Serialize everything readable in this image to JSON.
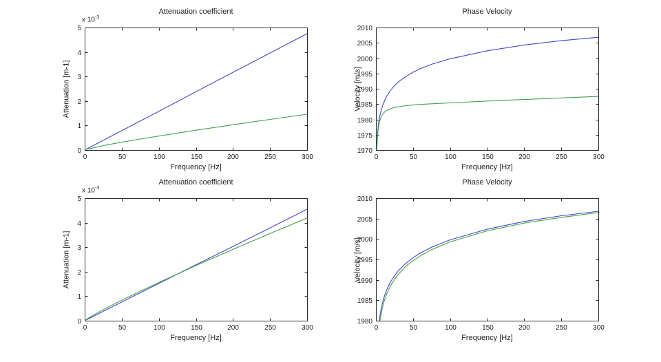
{
  "figure": {
    "background": "#ffffff",
    "axis_color": "#2a2a2a",
    "text_color": "#222222",
    "line_blue": "#4444cc",
    "line_green": "#3fa04e"
  },
  "chart_data": [
    {
      "type": "line",
      "title": "Attenuation coefficient",
      "xlabel": "Frequency [Hz]",
      "ylabel": "Attenuation [m-1]",
      "scale_label": "x 10",
      "scale_exp": "-3",
      "xlim": [
        0,
        300
      ],
      "ylim": [
        0,
        5
      ],
      "xticks": [
        0,
        50,
        100,
        150,
        200,
        250,
        300
      ],
      "yticks": [
        0,
        1,
        2,
        3,
        4,
        5
      ],
      "grid": false,
      "legend": "none",
      "series": [
        {
          "name": "blue-linear",
          "color": "#4444cc",
          "x": [
            0,
            50,
            100,
            150,
            200,
            250,
            300
          ],
          "y": [
            0,
            0.79,
            1.58,
            2.38,
            3.17,
            3.96,
            4.75
          ]
        },
        {
          "name": "green-powerlaw",
          "color": "#3fa04e",
          "x": [
            0,
            5,
            10,
            25,
            50,
            75,
            100,
            150,
            200,
            250,
            300
          ],
          "y": [
            0,
            0.05,
            0.08,
            0.18,
            0.32,
            0.45,
            0.57,
            0.81,
            1.03,
            1.25,
            1.46
          ]
        }
      ]
    },
    {
      "type": "line",
      "title": "Phase Velocity",
      "xlabel": "Frequency [Hz]",
      "ylabel": "Velocity [m/s]",
      "scale_label": "",
      "scale_exp": "",
      "xlim": [
        0,
        300
      ],
      "ylim": [
        1970,
        2010
      ],
      "xticks": [
        0,
        50,
        100,
        150,
        200,
        250,
        300
      ],
      "yticks": [
        1970,
        1975,
        1980,
        1985,
        1990,
        1995,
        2000,
        2005,
        2010
      ],
      "grid": false,
      "legend": "none",
      "series": [
        {
          "name": "blue-dispersive",
          "color": "#4444cc",
          "x": [
            1,
            2,
            3,
            4,
            5,
            6,
            8,
            10,
            12,
            15,
            20,
            25,
            30,
            40,
            50,
            60,
            75,
            100,
            150,
            200,
            250,
            300
          ],
          "y": [
            1970.5,
            1974.9,
            1977.5,
            1979.3,
            1980.8,
            1981.9,
            1983.7,
            1985.2,
            1986.3,
            1987.8,
            1989.6,
            1991.0,
            1992.2,
            1994.0,
            1995.4,
            1996.6,
            1998.0,
            1999.8,
            2002.4,
            2004.3,
            2005.7,
            2006.8
          ]
        },
        {
          "name": "green-dispersive",
          "color": "#3fa04e",
          "x": [
            1,
            2,
            3,
            4,
            5,
            6,
            8,
            10,
            12,
            15,
            20,
            25,
            30,
            40,
            50,
            60,
            75,
            100,
            150,
            200,
            250,
            300
          ],
          "y": [
            1970.0,
            1974.0,
            1976.5,
            1978.2,
            1979.4,
            1980.2,
            1981.3,
            1982.0,
            1982.5,
            1983.0,
            1983.5,
            1983.9,
            1984.1,
            1984.5,
            1984.7,
            1984.9,
            1985.1,
            1985.4,
            1986.0,
            1986.5,
            1987.0,
            1987.5
          ]
        }
      ]
    },
    {
      "type": "line",
      "title": "Attenuation coefficient",
      "xlabel": "Frequency [Hz]",
      "ylabel": "Attenuation [m-1]",
      "scale_label": "x 10",
      "scale_exp": "-3",
      "xlim": [
        0,
        300
      ],
      "ylim": [
        0,
        5
      ],
      "xticks": [
        0,
        50,
        100,
        150,
        200,
        250,
        300
      ],
      "yticks": [
        0,
        1,
        2,
        3,
        4,
        5
      ],
      "grid": false,
      "legend": "none",
      "series": [
        {
          "name": "blue-linear",
          "color": "#4444cc",
          "x": [
            0,
            50,
            100,
            150,
            200,
            250,
            300
          ],
          "y": [
            0,
            0.76,
            1.52,
            2.28,
            3.03,
            3.79,
            4.55
          ]
        },
        {
          "name": "green-powerlaw",
          "color": "#3fa04e",
          "x": [
            0,
            5,
            10,
            25,
            50,
            75,
            100,
            150,
            200,
            250,
            300
          ],
          "y": [
            0,
            0.11,
            0.2,
            0.45,
            0.84,
            1.2,
            1.56,
            2.25,
            2.91,
            3.56,
            4.19
          ]
        }
      ]
    },
    {
      "type": "line",
      "title": "Phase Velocity",
      "xlabel": "Frequency [Hz]",
      "ylabel": "Velocity [m/s]",
      "scale_label": "",
      "scale_exp": "",
      "xlim": [
        0,
        300
      ],
      "ylim": [
        1980,
        2010
      ],
      "xticks": [
        0,
        50,
        100,
        150,
        200,
        250,
        300
      ],
      "yticks": [
        1980,
        1985,
        1990,
        1995,
        2000,
        2005,
        2010
      ],
      "grid": false,
      "legend": "none",
      "series": [
        {
          "name": "blue-dispersive",
          "color": "#4444cc",
          "x": [
            3,
            4,
            5,
            6,
            8,
            10,
            12,
            15,
            20,
            25,
            30,
            40,
            50,
            60,
            75,
            100,
            150,
            200,
            250,
            300
          ],
          "y": [
            1977.5,
            1979.3,
            1980.8,
            1981.9,
            1983.7,
            1985.2,
            1986.3,
            1987.8,
            1989.6,
            1991.0,
            1992.2,
            1994.0,
            1995.4,
            1996.6,
            1998.0,
            1999.8,
            2002.4,
            2004.3,
            2005.7,
            2006.8
          ]
        },
        {
          "name": "green-dispersive",
          "color": "#3fa04e",
          "x": [
            4,
            5,
            6,
            8,
            10,
            12,
            15,
            20,
            25,
            30,
            40,
            50,
            60,
            75,
            100,
            150,
            200,
            250,
            300
          ],
          "y": [
            1978.1,
            1979.5,
            1980.7,
            1982.6,
            1984.1,
            1985.3,
            1986.8,
            1988.7,
            1990.1,
            1991.3,
            1993.3,
            1994.7,
            1995.9,
            1997.4,
            1999.3,
            2002.0,
            2003.9,
            2005.3,
            2006.5
          ]
        }
      ]
    }
  ]
}
